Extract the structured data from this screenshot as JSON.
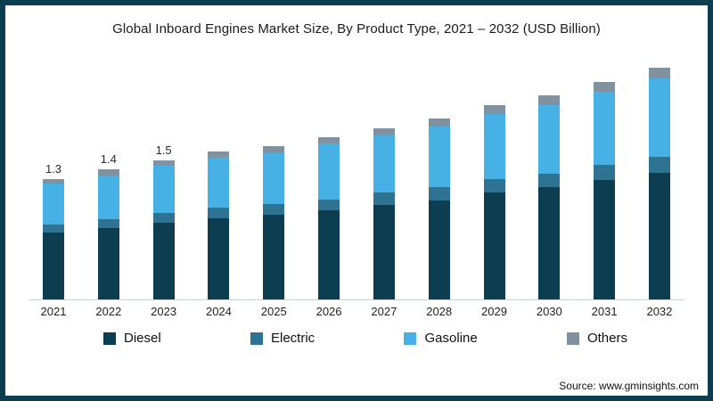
{
  "title": "Global Inboard Engines Market Size, By Product Type, 2021 – 2032 (USD Billion)",
  "source": "Source: www.gminsights.com",
  "colors": {
    "diesel": "#0d3d50",
    "electric": "#2f7392",
    "gasoline": "#47b1e6",
    "others": "#80919f",
    "frame": "#0d3d50",
    "axis": "#c9ced4"
  },
  "chart_data": {
    "type": "bar",
    "stacked": true,
    "title": "Global Inboard Engines Market Size, By Product Type, 2021 – 2032 (USD Billion)",
    "xlabel": "",
    "ylabel": "USD Billion",
    "ylim": [
      0,
      2.6
    ],
    "grid": false,
    "legend_position": "bottom",
    "categories": [
      "2021",
      "2022",
      "2023",
      "2024",
      "2025",
      "2026",
      "2027",
      "2028",
      "2029",
      "2030",
      "2031",
      "2032"
    ],
    "series": [
      {
        "name": "Diesel",
        "color_key": "diesel",
        "values": [
          0.72,
          0.77,
          0.83,
          0.88,
          0.91,
          0.96,
          1.02,
          1.07,
          1.15,
          1.21,
          1.29,
          1.37
        ]
      },
      {
        "name": "Electric",
        "color_key": "electric",
        "values": [
          0.09,
          0.1,
          0.1,
          0.11,
          0.12,
          0.12,
          0.13,
          0.14,
          0.15,
          0.15,
          0.16,
          0.17
        ]
      },
      {
        "name": "Gasoline",
        "color_key": "gasoline",
        "values": [
          0.44,
          0.47,
          0.51,
          0.54,
          0.55,
          0.6,
          0.62,
          0.66,
          0.7,
          0.74,
          0.79,
          0.84
        ]
      },
      {
        "name": "Others",
        "color_key": "others",
        "values": [
          0.05,
          0.06,
          0.06,
          0.07,
          0.07,
          0.07,
          0.08,
          0.08,
          0.1,
          0.1,
          0.11,
          0.12
        ]
      }
    ],
    "totals": [
      1.3,
      1.4,
      1.5,
      1.6,
      1.65,
      1.75,
      1.85,
      1.95,
      2.1,
      2.2,
      2.35,
      2.5
    ],
    "value_labels": [
      "1.3",
      "1.4",
      "1.5",
      "",
      "",
      "",
      "",
      "",
      "",
      "",
      "",
      ""
    ]
  }
}
